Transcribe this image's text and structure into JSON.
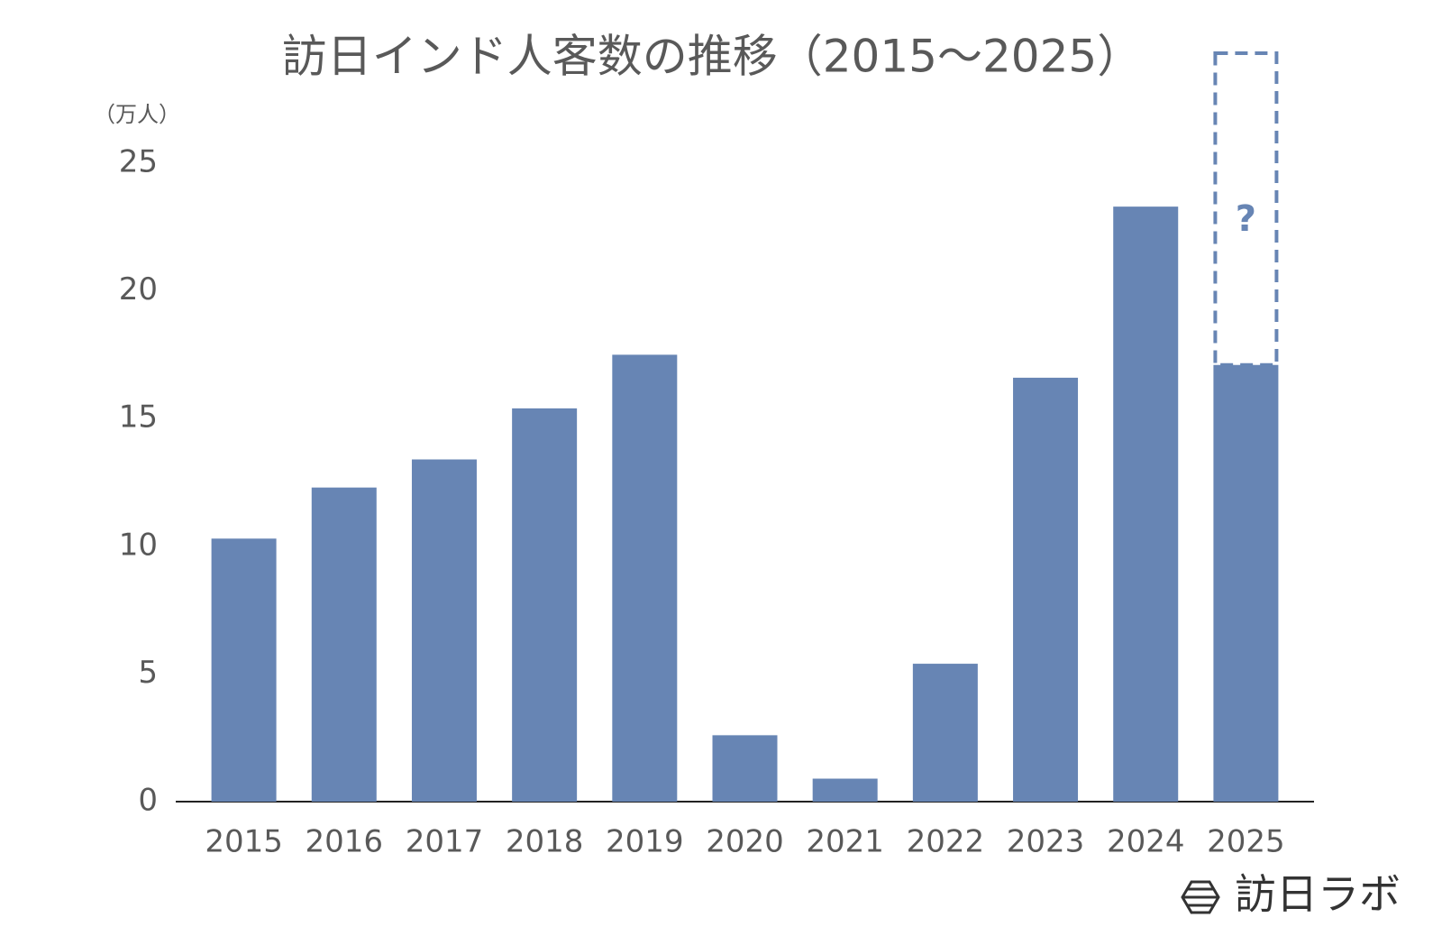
{
  "chart_data": {
    "type": "bar",
    "title": "訪日インド人客数の推移（2015〜2025）",
    "y_label": "（万人）",
    "categories": [
      "2015",
      "2016",
      "2017",
      "2018",
      "2019",
      "2020",
      "2021",
      "2022",
      "2023",
      "2024",
      "2025"
    ],
    "values": [
      10.3,
      12.3,
      13.4,
      15.4,
      17.5,
      2.6,
      0.9,
      5.4,
      16.6,
      23.3,
      17.1
    ],
    "color": "#6785b4",
    "ylim": [
      0,
      25
    ],
    "yticks": [
      0,
      5,
      10,
      15,
      20,
      25
    ],
    "grid": false,
    "annotation": "?",
    "logo": "訪日ラボ"
  }
}
